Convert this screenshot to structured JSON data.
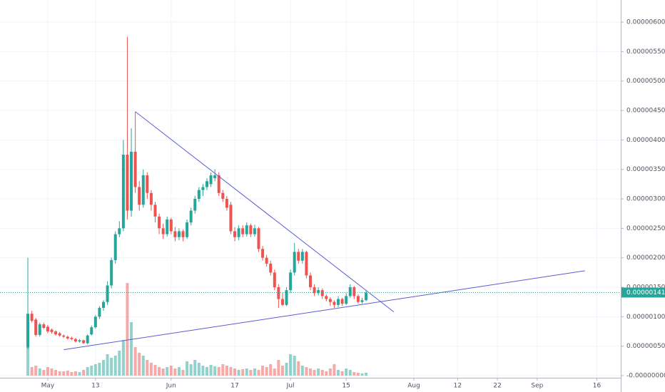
{
  "chart_data": {
    "type": "candlestick",
    "x": [
      "04-26",
      "04-27",
      "04-28",
      "04-29",
      "04-30",
      "05-01",
      "05-02",
      "05-03",
      "05-04",
      "05-05",
      "05-06",
      "05-07",
      "05-08",
      "05-09",
      "05-10",
      "05-11",
      "05-12",
      "05-13",
      "05-14",
      "05-15",
      "05-16",
      "05-17",
      "05-18",
      "05-19",
      "05-20",
      "05-21",
      "05-22",
      "05-23",
      "05-24",
      "05-25",
      "05-26",
      "05-27",
      "05-28",
      "05-29",
      "05-30",
      "05-31",
      "06-01",
      "06-02",
      "06-03",
      "06-04",
      "06-05",
      "06-06",
      "06-07",
      "06-08",
      "06-09",
      "06-10",
      "06-11",
      "06-12",
      "06-13",
      "06-14",
      "06-15",
      "06-16",
      "06-17",
      "06-18",
      "06-19",
      "06-20",
      "06-21",
      "06-22",
      "06-23",
      "06-24",
      "06-25",
      "06-26",
      "06-27",
      "06-28",
      "06-29",
      "06-30",
      "07-01",
      "07-02",
      "07-03",
      "07-04",
      "07-05",
      "07-06",
      "07-07",
      "07-08",
      "07-09",
      "07-10",
      "07-11",
      "07-12",
      "07-13",
      "07-14",
      "07-15",
      "07-16",
      "07-17",
      "07-18",
      "07-19",
      "07-20"
    ],
    "open": [
      4.8e-07,
      1.05e-06,
      9.5e-07,
      6.9e-07,
      8.7e-07,
      8.3e-07,
      7.8e-07,
      7.5e-07,
      7.2e-07,
      6.8e-07,
      6.6e-07,
      6.4e-07,
      6.2e-07,
      5.8e-07,
      6e-07,
      5.5e-07,
      7e-07,
      8.2e-07,
      1e-06,
      1.15e-06,
      1.25e-06,
      1.53e-06,
      1.96e-06,
      2.4e-06,
      2.5e-06,
      3.75e-06,
      2.8e-06,
      3.8e-06,
      3.2e-06,
      2.9e-06,
      3.4e-06,
      3.1e-06,
      2.9e-06,
      2.7e-06,
      2.5e-06,
      2.4e-06,
      2.65e-06,
      2.45e-06,
      2.35e-06,
      2.45e-06,
      2.35e-06,
      2.6e-06,
      2.8e-06,
      3e-06,
      3.15e-06,
      3.2e-06,
      3.25e-06,
      3.35e-06,
      3.4e-06,
      3.1e-06,
      3e-06,
      2.9e-06,
      2.45e-06,
      2.35e-06,
      2.5e-06,
      2.4e-06,
      2.55e-06,
      2.4e-06,
      2.5e-06,
      2.15e-06,
      2e-06,
      1.9e-06,
      1.75e-06,
      1.5e-06,
      1.3e-06,
      1.2e-06,
      1.45e-06,
      1.75e-06,
      2.1e-06,
      1.95e-06,
      2.1e-06,
      1.7e-06,
      1.5e-06,
      1.4e-06,
      1.45e-06,
      1.35e-06,
      1.3e-06,
      1.25e-06,
      1.2e-06,
      1.3e-06,
      1.22e-06,
      1.35e-06,
      1.5e-06,
      1.35e-06,
      1.25e-06,
      1.28e-06
    ],
    "high": [
      2e-06,
      1.1e-06,
      9.8e-07,
      9e-07,
      9e-07,
      8.6e-07,
      8e-07,
      7.7e-07,
      7.4e-07,
      7e-07,
      6.8e-07,
      6.6e-07,
      6.4e-07,
      6.2e-07,
      6.1e-07,
      7e-07,
      8.5e-07,
      1.03e-06,
      1.18e-06,
      1.28e-06,
      1.6e-06,
      2e-06,
      2.45e-06,
      2.62e-06,
      4e-06,
      5.75e-06,
      4.2e-06,
      4.48e-06,
      3.3e-06,
      3.5e-06,
      3.45e-06,
      3.15e-06,
      2.95e-06,
      2.75e-06,
      2.58e-06,
      2.7e-06,
      2.68e-06,
      2.52e-06,
      2.5e-06,
      2.48e-06,
      2.65e-06,
      2.85e-06,
      3.05e-06,
      3.2e-06,
      3.25e-06,
      3.35e-06,
      3.45e-06,
      3.5e-06,
      3.45e-06,
      3.15e-06,
      3.05e-06,
      2.95e-06,
      2.52e-06,
      2.55e-06,
      2.55e-06,
      2.6e-06,
      2.58e-06,
      2.56e-06,
      2.52e-06,
      2.2e-06,
      2.05e-06,
      1.95e-06,
      1.8e-06,
      1.55e-06,
      1.4e-06,
      1.5e-06,
      1.8e-06,
      2.25e-06,
      2.15e-06,
      2.15e-06,
      2.12e-06,
      1.75e-06,
      1.55e-06,
      1.5e-06,
      1.48e-06,
      1.38e-06,
      1.33e-06,
      1.28e-06,
      1.35e-06,
      1.32e-06,
      1.4e-06,
      1.55e-06,
      1.52e-06,
      1.38e-06,
      1.32e-06,
      1.45e-06
    ],
    "low": [
      4.5e-07,
      9e-07,
      6.6e-07,
      6.6e-07,
      7.9e-07,
      7.2e-07,
      7.1e-07,
      6.8e-07,
      6.6e-07,
      6.4e-07,
      6.1e-07,
      6e-07,
      5.6e-07,
      5.6e-07,
      5.4e-07,
      5.3e-07,
      6.8e-07,
      8e-07,
      9.6e-07,
      1.1e-06,
      1.2e-06,
      1.48e-06,
      1.9e-06,
      2.35e-06,
      2.45e-06,
      2.65e-06,
      2.7e-06,
      3.1e-06,
      2.8e-06,
      2.85e-06,
      3e-06,
      2.8e-06,
      2.6e-06,
      2.4e-06,
      2.32e-06,
      2.36e-06,
      2.4e-06,
      2.28e-06,
      2.3e-06,
      2.28e-06,
      2.32e-06,
      2.55e-06,
      2.75e-06,
      2.95e-06,
      3.05e-06,
      3.15e-06,
      3.2e-06,
      3.3e-06,
      3.05e-06,
      2.95e-06,
      2.8e-06,
      2.4e-06,
      2.28e-06,
      2.3e-06,
      2.35e-06,
      2.36e-06,
      2.35e-06,
      2.36e-06,
      2.1e-06,
      1.95e-06,
      1.85e-06,
      1.7e-06,
      1.45e-06,
      1.15e-06,
      1.18e-06,
      1.18e-06,
      1.4e-06,
      1.7e-06,
      1.9e-06,
      1.9e-06,
      1.65e-06,
      1.45e-06,
      1.35e-06,
      1.36e-06,
      1.3e-06,
      1.26e-06,
      1.18e-06,
      1.15e-06,
      1.16e-06,
      1.18e-06,
      1.2e-06,
      1.32e-06,
      1.3e-06,
      1.22e-06,
      1.22e-06,
      1.26e-06
    ],
    "close": [
      1.05e-06,
      9.3e-07,
      6.9e-07,
      8.7e-07,
      8.1e-07,
      7.5e-07,
      7.4e-07,
      7e-07,
      6.8e-07,
      6.6e-07,
      6.3e-07,
      6.2e-07,
      5.8e-07,
      6e-07,
      5.5e-07,
      6.8e-07,
      8.2e-07,
      1e-06,
      1.15e-06,
      1.25e-06,
      1.53e-06,
      1.96e-06,
      2.4e-06,
      2.5e-06,
      3.75e-06,
      2.8e-06,
      3.8e-06,
      3.2e-06,
      2.9e-06,
      3.4e-06,
      3.1e-06,
      2.9e-06,
      2.7e-06,
      2.5e-06,
      2.4e-06,
      2.65e-06,
      2.45e-06,
      2.35e-06,
      2.45e-06,
      2.35e-06,
      2.6e-06,
      2.8e-06,
      3e-06,
      3.15e-06,
      3.2e-06,
      3.3e-06,
      3.4e-06,
      3.4e-06,
      3.1e-06,
      3e-06,
      2.85e-06,
      2.45e-06,
      2.35e-06,
      2.5e-06,
      2.4e-06,
      2.55e-06,
      2.4e-06,
      2.5e-06,
      2.15e-06,
      2e-06,
      1.9e-06,
      1.75e-06,
      1.5e-06,
      1.3e-06,
      1.2e-06,
      1.45e-06,
      1.75e-06,
      2.1e-06,
      1.95e-06,
      2.1e-06,
      1.7e-06,
      1.5e-06,
      1.4e-06,
      1.45e-06,
      1.35e-06,
      1.3e-06,
      1.25e-06,
      1.2e-06,
      1.3e-06,
      1.22e-06,
      1.35e-06,
      1.5e-06,
      1.35e-06,
      1.25e-06,
      1.28e-06,
      1.41e-06
    ],
    "volume": [
      40,
      12,
      14,
      10,
      8,
      12,
      10,
      8,
      6,
      6,
      7,
      5,
      6,
      5,
      8,
      12,
      14,
      16,
      18,
      22,
      30,
      25,
      28,
      35,
      50,
      130,
      75,
      40,
      32,
      28,
      22,
      18,
      15,
      12,
      10,
      12,
      14,
      10,
      12,
      8,
      20,
      16,
      22,
      18,
      14,
      12,
      15,
      13,
      12,
      16,
      14,
      12,
      10,
      8,
      9,
      10,
      8,
      10,
      8,
      14,
      12,
      16,
      10,
      22,
      14,
      18,
      30,
      28,
      20,
      14,
      12,
      10,
      8,
      10,
      8,
      6,
      10,
      16,
      8,
      6,
      10,
      8,
      5,
      4,
      3,
      4
    ],
    "up_color": "#26a69a",
    "down_color": "#ef5350",
    "xlim": [
      "04-19",
      "09-22"
    ],
    "xticks": [
      {
        "value": "05-01",
        "label": "May"
      },
      {
        "value": "05-13",
        "label": "13"
      },
      {
        "value": "06-01",
        "label": "Jun"
      },
      {
        "value": "06-17",
        "label": "17"
      },
      {
        "value": "07-01",
        "label": "Jul"
      },
      {
        "value": "07-15",
        "label": "15"
      },
      {
        "value": "08-01",
        "label": "Aug"
      },
      {
        "value": "08-12",
        "label": "12"
      },
      {
        "value": "08-22",
        "label": "22"
      },
      {
        "value": "09-01",
        "label": "Sep"
      },
      {
        "value": "09-16",
        "label": "16"
      }
    ],
    "ylim": [
      -3.63e-08,
      6.375e-06
    ],
    "yticks": [
      {
        "value": 0,
        "label": "-0.00000000"
      },
      {
        "value": 5e-07,
        "label": "0.00000050"
      },
      {
        "value": 1e-06,
        "label": "0.00000100"
      },
      {
        "value": 1.5e-06,
        "label": "0.00000150"
      },
      {
        "value": 2e-06,
        "label": "0.00000200"
      },
      {
        "value": 2.5e-06,
        "label": "0.00000250"
      },
      {
        "value": 3e-06,
        "label": "0.00000300"
      },
      {
        "value": 3.5e-06,
        "label": "0.00000350"
      },
      {
        "value": 4e-06,
        "label": "0.00000400"
      },
      {
        "value": 4.5e-06,
        "label": "0.00000450"
      },
      {
        "value": 5e-06,
        "label": "0.00000500"
      },
      {
        "value": 5.5e-06,
        "label": "0.00000550"
      },
      {
        "value": 6e-06,
        "label": "0.00000600"
      }
    ],
    "grid": true,
    "last_price": {
      "value": 1.41e-06,
      "label": "0.00000141"
    },
    "trendlines": [
      {
        "x": [
          "05-23",
          "07-27"
        ],
        "y": [
          4.48e-06,
          1.08e-06
        ],
        "color": "#5b5bd6"
      },
      {
        "x": [
          "05-05",
          "09-13"
        ],
        "y": [
          4.4e-07,
          1.78e-06
        ],
        "color": "#5b5bd6"
      }
    ]
  }
}
